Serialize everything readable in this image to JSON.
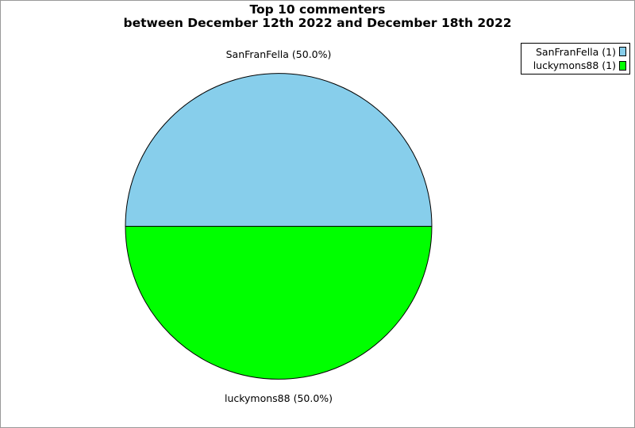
{
  "title": {
    "line1": "Top 10 commenters",
    "line2": "between December 12th 2022 and December 18th 2022"
  },
  "chart_data": {
    "type": "pie",
    "title": "Top 10 commenters between December 12th 2022 and December 18th 2022",
    "slices": [
      {
        "name": "SanFranFella",
        "count": 1,
        "percent": 50.0,
        "color": "#87CEEB",
        "label": "SanFranFella (50.0%)"
      },
      {
        "name": "luckymons88",
        "count": 1,
        "percent": 50.0,
        "color": "#00FF00",
        "label": "luckymons88 (50.0%)"
      }
    ],
    "start_angle_deg": 0,
    "direction": "counterclockwise",
    "stroke_color": "#000000",
    "legend_position": "top-right"
  },
  "legend": {
    "items": [
      {
        "label": "SanFranFella (1)",
        "color": "#87CEEB"
      },
      {
        "label": "luckymons88 (1)",
        "color": "#00FF00"
      }
    ]
  },
  "colors": {
    "background": "#FFFFFF",
    "frame_border": "#999999",
    "legend_border": "#000000"
  }
}
